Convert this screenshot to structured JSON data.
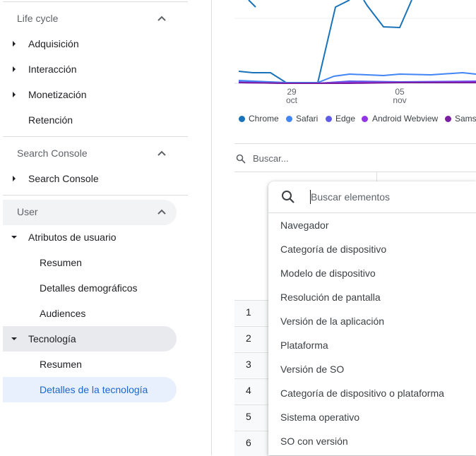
{
  "sidebar": {
    "sections": [
      {
        "title": "Life cycle",
        "items": [
          "Adquisición",
          "Interacción",
          "Monetización",
          "Retención"
        ]
      },
      {
        "title": "Search Console",
        "items": [
          "Search Console"
        ]
      },
      {
        "title": "User",
        "items": [
          "Atributos de usuario",
          "Resumen",
          "Detalles demográficos",
          "Audiences",
          "Tecnología",
          "Resumen",
          "Detalles de la tecnología"
        ]
      }
    ]
  },
  "chart": {
    "x_labels": [
      {
        "day": "29",
        "month": "oct"
      },
      {
        "day": "05",
        "month": "nov"
      }
    ],
    "legend": [
      "Chrome",
      "Safari",
      "Edge",
      "Android Webview",
      "Sams"
    ]
  },
  "table": {
    "search_placeholder": "Buscar...",
    "row_numbers": [
      1,
      2,
      3,
      4,
      5,
      6
    ]
  },
  "dropdown": {
    "search_placeholder": "Buscar elementos",
    "options": [
      "Navegador",
      "Categoría de dispositivo",
      "Modelo de dispositivo",
      "Resolución de pantalla",
      "Versión de la aplicación",
      "Plataforma",
      "Versión de SO",
      "Categoría de dispositivo o plataforma",
      "Sistema operativo",
      "SO con versión"
    ]
  }
}
